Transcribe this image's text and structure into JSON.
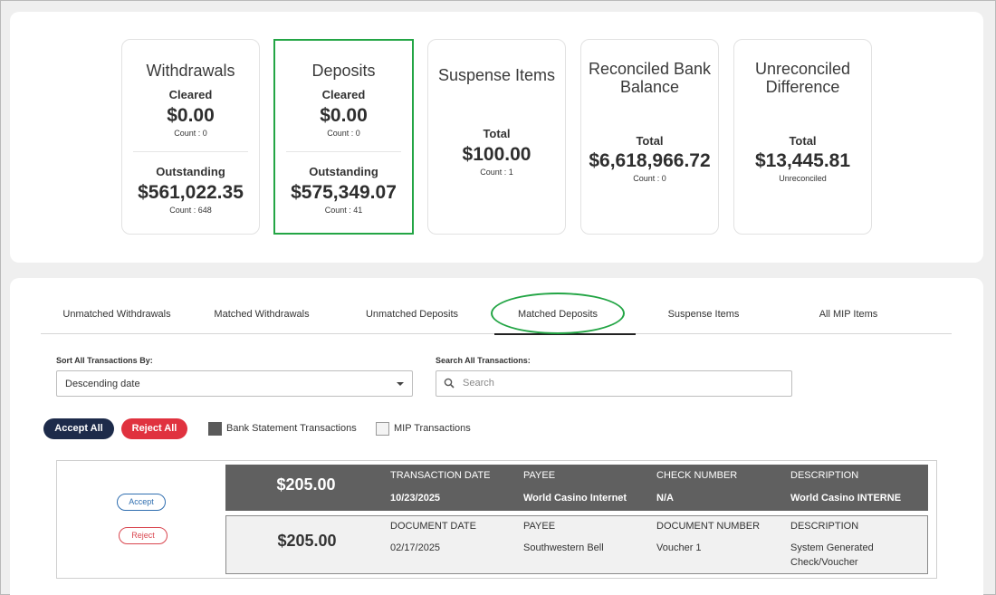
{
  "summary": {
    "withdrawals": {
      "title": "Withdrawals",
      "cleared_label": "Cleared",
      "cleared_amount": "$0.00",
      "cleared_count": "Count : 0",
      "outstanding_label": "Outstanding",
      "outstanding_amount": "$561,022.35",
      "outstanding_count": "Count : 648"
    },
    "deposits": {
      "title": "Deposits",
      "cleared_label": "Cleared",
      "cleared_amount": "$0.00",
      "cleared_count": "Count : 0",
      "outstanding_label": "Outstanding",
      "outstanding_amount": "$575,349.07",
      "outstanding_count": "Count : 41"
    },
    "suspense": {
      "title": "Suspense Items",
      "total_label": "Total",
      "total_amount": "$100.00",
      "count": "Count : 1"
    },
    "reconciled": {
      "title_line1": "Reconciled Bank",
      "title_line2": "Balance",
      "total_label": "Total",
      "total_amount": "$6,618,966.72",
      "count": "Count : 0"
    },
    "unreconciled": {
      "title_line1": "Unreconciled",
      "title_line2": "Difference",
      "total_label": "Total",
      "total_amount": "$13,445.81",
      "sub": "Unreconciled"
    }
  },
  "tabs": [
    {
      "label": "Unmatched Withdrawals"
    },
    {
      "label": "Matched Withdrawals"
    },
    {
      "label": "Unmatched Deposits"
    },
    {
      "label": "Matched Deposits",
      "active": true
    },
    {
      "label": "Suspense Items"
    },
    {
      "label": "All MIP Items"
    }
  ],
  "filters": {
    "sort_label": "Sort All Transactions By:",
    "sort_value": "Descending date",
    "search_label": "Search All Transactions:",
    "search_placeholder": "Search"
  },
  "actions": {
    "accept_all": "Accept All",
    "reject_all": "Reject All"
  },
  "legend": {
    "bank": "Bank Statement Transactions",
    "mip": "MIP Transactions"
  },
  "match": {
    "accept": "Accept",
    "reject": "Reject",
    "bank": {
      "amount": "$205.00",
      "date_head": "TRANSACTION DATE",
      "date": "10/23/2025",
      "payee_head": "PAYEE",
      "payee": "World Casino Internet",
      "number_head": "CHECK NUMBER",
      "number": "N/A",
      "desc_head": "DESCRIPTION",
      "desc": "World Casino INTERNE"
    },
    "mip": {
      "amount": "$205.00",
      "date_head": "DOCUMENT DATE",
      "date": "02/17/2025",
      "payee_head": "PAYEE",
      "payee": "Southwestern Bell",
      "number_head": "DOCUMENT NUMBER",
      "number": "Voucher 1",
      "desc_head": "DESCRIPTION",
      "desc_line1": "System Generated",
      "desc_line2": "Check/Voucher"
    }
  },
  "colors": {
    "accept_all_bg": "#1d2b4a",
    "reject_all_bg": "#e0323f",
    "selected_border": "#23a545",
    "bank_row_bg": "#606060"
  }
}
